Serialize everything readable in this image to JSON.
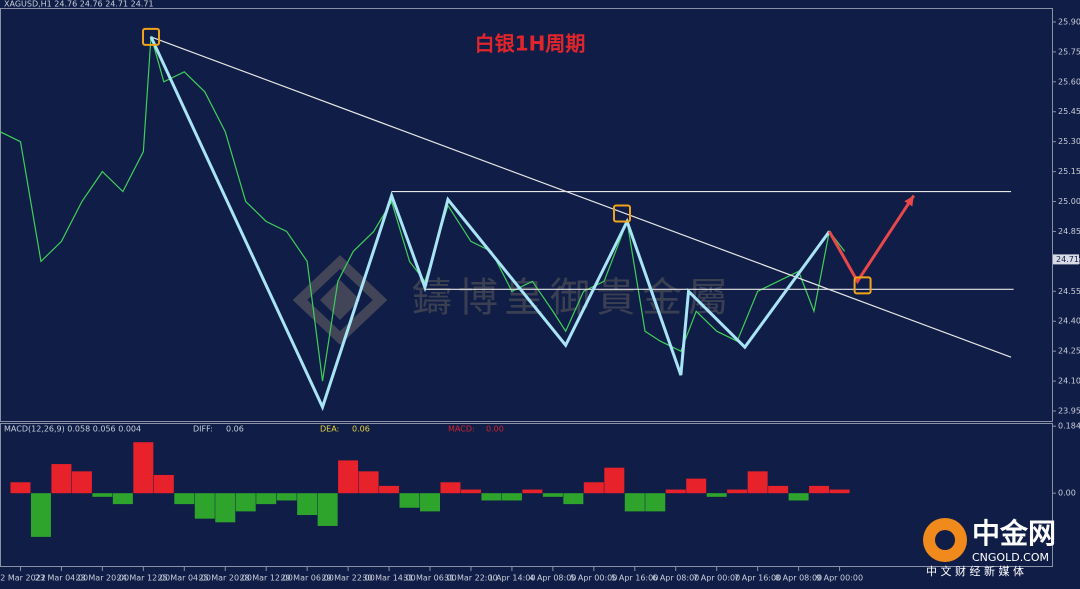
{
  "header": "XAGUSD,H1  24.76 24.76 24.71 24.71",
  "watermark": "鑄博皇御貴金屬",
  "logo": {
    "name": "中金网",
    "site": "CNGOLD.COM",
    "slogan": "中 文 财 经 新 媒 体"
  },
  "chart_data": [
    {
      "type": "line",
      "title": "白银1H周期",
      "xlim": [
        -8,
        403
      ],
      "ylim": [
        23.9,
        25.97
      ],
      "xticks": [
        {
          "value": 0,
          "label": "22 Mar 2022"
        },
        {
          "value": 16,
          "label": "23 Mar 04:00"
        },
        {
          "value": 32,
          "label": "23 Mar 20:00"
        },
        {
          "value": 48,
          "label": "24 Mar 12:00"
        },
        {
          "value": 64,
          "label": "25 Mar 04:00"
        },
        {
          "value": 80,
          "label": "25 Mar 20:00"
        },
        {
          "value": 96,
          "label": "28 Mar 12:00"
        },
        {
          "value": 112,
          "label": "29 Mar 06:00"
        },
        {
          "value": 128,
          "label": "29 Mar 22:00"
        },
        {
          "value": 144,
          "label": "30 Mar 14:00"
        },
        {
          "value": 160,
          "label": "31 Mar 06:00"
        },
        {
          "value": 176,
          "label": "31 Mar 22:00"
        },
        {
          "value": 192,
          "label": "1 Apr 14:00"
        },
        {
          "value": 208,
          "label": "4 Apr 08:00"
        },
        {
          "value": 224,
          "label": "5 Apr 00:00"
        },
        {
          "value": 240,
          "label": "5 Apr 16:00"
        },
        {
          "value": 256,
          "label": "6 Apr 08:00"
        },
        {
          "value": 272,
          "label": "7 Apr 00:00"
        },
        {
          "value": 288,
          "label": "7 Apr 16:00"
        },
        {
          "value": 304,
          "label": "8 Apr 08:00"
        },
        {
          "value": 320,
          "label": "9 Apr 00:00"
        }
      ],
      "yticks": [
        {
          "value": 25.9,
          "label": "25.90"
        },
        25.75,
        {
          "value": 25.6,
          "label": "25.60"
        },
        25.45,
        {
          "value": 25.3,
          "label": "25.30"
        },
        25.15,
        {
          "value": 25.0,
          "label": "25.00"
        },
        24.85,
        {
          "value": 24.7,
          "label": "24.70"
        },
        24.55,
        {
          "value": 24.4,
          "label": "24.40"
        },
        24.25,
        {
          "value": 24.1,
          "label": "24.10"
        },
        23.95
      ],
      "last_price": 24.71,
      "series": [
        {
          "kind": "line",
          "color": "#3fcf5a",
          "width": 1.2,
          "x": [
            -8,
            0,
            8,
            16,
            24,
            32,
            40,
            48,
            51,
            56,
            64,
            72,
            80,
            88,
            96,
            104,
            112,
            118,
            124,
            130,
            138,
            145,
            152,
            158,
            167,
            176,
            184,
            192,
            200,
            208,
            213,
            220,
            228,
            237,
            244,
            250,
            258,
            264,
            272,
            280,
            288,
            296,
            304,
            310,
            316,
            322
          ],
          "values": [
            25.35,
            25.3,
            24.7,
            24.8,
            25.0,
            25.15,
            25.05,
            25.25,
            25.83,
            25.6,
            25.65,
            25.55,
            25.35,
            25.0,
            24.9,
            24.85,
            24.7,
            24.1,
            24.6,
            24.75,
            24.85,
            25.0,
            24.7,
            24.6,
            24.98,
            24.8,
            24.75,
            24.55,
            24.6,
            24.45,
            24.35,
            24.55,
            24.6,
            24.9,
            24.35,
            24.3,
            24.25,
            24.45,
            24.35,
            24.3,
            24.55,
            24.6,
            24.65,
            24.45,
            24.85,
            24.75
          ]
        },
        {
          "kind": "line",
          "color": "#e6e6e6",
          "width": 1.2,
          "x": [
            51,
            387
          ],
          "values": [
            25.825,
            24.22
          ]
        },
        {
          "kind": "line",
          "color": "#e6e6e6",
          "width": 1.2,
          "x": [
            145,
            387
          ],
          "values": [
            25.05,
            25.05
          ]
        },
        {
          "kind": "line",
          "color": "#e6e6e6",
          "width": 1.2,
          "x": [
            158,
            388
          ],
          "values": [
            24.56,
            24.56
          ]
        },
        {
          "kind": "line",
          "color": "#a8e4f5",
          "width": 3,
          "x": [
            51,
            118,
            145,
            158,
            167,
            213,
            237,
            258,
            261,
            283,
            316
          ],
          "values": [
            25.825,
            23.97,
            25.03,
            24.57,
            25.01,
            24.28,
            24.9,
            24.13,
            24.55,
            24.27,
            24.85
          ]
        },
        {
          "kind": "line",
          "color": "#e8484a",
          "width": 3,
          "x": [
            316,
            327,
            349
          ],
          "values": [
            24.85,
            24.6,
            25.03
          ]
        },
        {
          "kind": "box",
          "color": "#f0a31c",
          "x": [
            51,
            235,
            329
          ],
          "values": [
            25.825,
            24.94,
            24.58
          ]
        }
      ]
    },
    {
      "type": "bar",
      "title": "MACD(12,26,9) 0.058 0.056 0.004",
      "labels": [
        "DIFF:",
        "0.06",
        "DEA:",
        "0.06",
        "MACD:",
        "0.00"
      ],
      "xlim": [
        -8,
        403
      ],
      "ylim": [
        -0.2,
        0.19
      ],
      "yticks": [
        0.184,
        {
          "value": 0,
          "label": "0.00"
        }
      ],
      "x": [
        0,
        8,
        16,
        24,
        32,
        40,
        48,
        56,
        64,
        72,
        80,
        88,
        96,
        104,
        112,
        120,
        128,
        136,
        144,
        152,
        160,
        168,
        176,
        184,
        192,
        200,
        208,
        216,
        224,
        232,
        240,
        248,
        256,
        264,
        272,
        280,
        288,
        296,
        304,
        312,
        320
      ],
      "values": [
        0.03,
        -0.12,
        0.08,
        0.06,
        -0.01,
        -0.03,
        0.14,
        0.05,
        -0.03,
        -0.07,
        -0.08,
        -0.05,
        -0.03,
        -0.02,
        -0.06,
        -0.09,
        0.09,
        0.06,
        0.02,
        -0.04,
        -0.05,
        0.03,
        0.01,
        -0.02,
        -0.02,
        0.01,
        -0.01,
        -0.03,
        0.03,
        0.07,
        -0.05,
        -0.05,
        0.01,
        0.04,
        -0.01,
        0.01,
        0.06,
        0.02,
        -0.02,
        0.02,
        0.01
      ],
      "up_color": "#e8222a",
      "down_color": "#2fa42c"
    }
  ]
}
